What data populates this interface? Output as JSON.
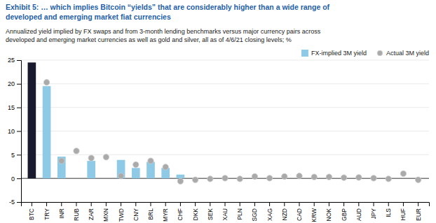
{
  "chart_data": {
    "type": "bar",
    "title": "Exhibit 5: … which implies Bitcoin “yields” that are considerably higher than a wide range of\ndeveloped and emerging market fiat currencies",
    "subtitle": "Annualized yield implied by FX swaps and from 3-month lending benchmarks versus major currency pairs across\ndeveloped and emerging market currencies as well as gold and silver, all as of 4/6/21 closing levels; %",
    "categories": [
      "BTC",
      "TRY",
      "INR",
      "RUB",
      "ZAR",
      "MXN",
      "TWD",
      "CNY",
      "BRL",
      "MYR",
      "CHF",
      "DKK",
      "SEK",
      "XAU",
      "PLN",
      "SGD",
      "XAG",
      "NZD",
      "CAD",
      "KRW",
      "NOK",
      "GBP",
      "AUD",
      "JPY",
      "ILS",
      "HUF",
      "EUR"
    ],
    "series": [
      {
        "name": "FX-implied 3M yield",
        "type": "bar",
        "color": "#8ecae6",
        "colors": [
          "#1a1a2e",
          "#8ecae6",
          "#8ecae6",
          "#8ecae6",
          "#8ecae6",
          "#8ecae6",
          "#8ecae6",
          "#8ecae6",
          "#8ecae6",
          "#8ecae6",
          "#8ecae6",
          "#8ecae6",
          "#8ecae6",
          "#8ecae6",
          "#8ecae6",
          "#8ecae6",
          "#8ecae6",
          "#8ecae6",
          "#8ecae6",
          "#8ecae6",
          "#8ecae6",
          "#8ecae6",
          "#8ecae6",
          "#8ecae6",
          "#8ecae6",
          "#8ecae6",
          "#8ecae6"
        ],
        "values": [
          24.5,
          19.5,
          4.6,
          null,
          3.7,
          null,
          3.9,
          2.2,
          3.5,
          2.2,
          0.8,
          null,
          null,
          null,
          null,
          null,
          null,
          null,
          null,
          null,
          null,
          null,
          null,
          null,
          null,
          null,
          null
        ]
      },
      {
        "name": "Actual 3M yield",
        "type": "scatter",
        "marker": "circle",
        "color": "#aaaaaa",
        "values": [
          null,
          20.3,
          3.7,
          5.8,
          4.3,
          4.5,
          0.5,
          2.9,
          3.7,
          2.4,
          -0.6,
          -0.3,
          -0.1,
          0.05,
          -0.1,
          0.4,
          0.05,
          0.4,
          0.5,
          0.3,
          0.3,
          0.15,
          0.2,
          0.05,
          -0.1,
          1.0,
          -0.3
        ]
      }
    ],
    "ylim": [
      -5,
      25
    ],
    "yticks": [
      -5,
      0,
      5,
      10,
      15,
      20,
      25
    ],
    "grid": true,
    "legend": "upper right"
  }
}
